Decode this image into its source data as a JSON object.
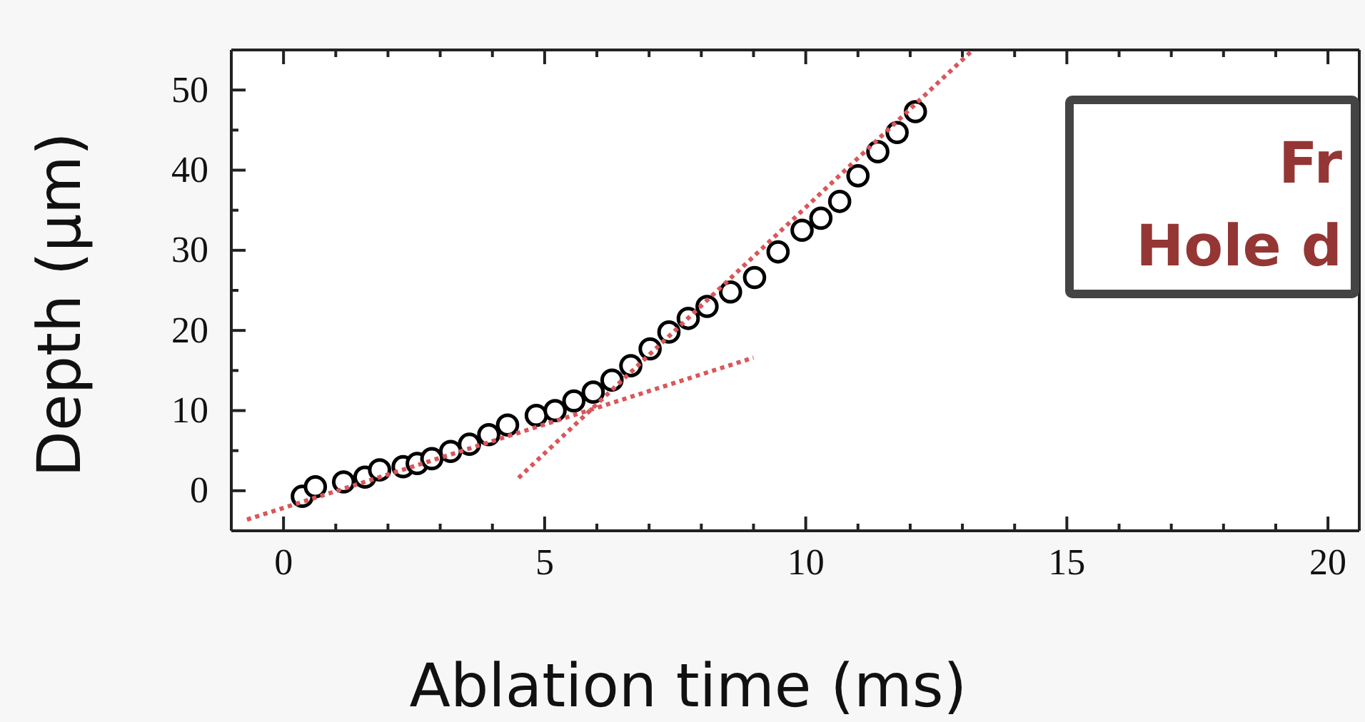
{
  "chart_data": {
    "type": "scatter",
    "xlabel": "Ablation time (ms)",
    "ylabel": "Depth (μm)",
    "xlim": [
      -1,
      20.6
    ],
    "ylim": [
      -5,
      55
    ],
    "xticks": [
      0,
      {
        "value": 1,
        "label": null
      },
      {
        "value": 2,
        "label": null
      },
      {
        "value": 3,
        "label": null
      },
      {
        "value": 4,
        "label": null
      },
      5,
      {
        "value": 6,
        "label": null
      },
      {
        "value": 7,
        "label": null
      },
      {
        "value": 8,
        "label": null
      },
      {
        "value": 9,
        "label": null
      },
      10,
      {
        "value": 11,
        "label": null
      },
      {
        "value": 12,
        "label": null
      },
      {
        "value": 13,
        "label": null
      },
      {
        "value": 14,
        "label": null
      },
      15,
      {
        "value": 16,
        "label": null
      },
      {
        "value": 17,
        "label": null
      },
      {
        "value": 18,
        "label": null
      },
      {
        "value": 19,
        "label": null
      },
      20
    ],
    "yticks": [
      {
        "value": -5,
        "label": null
      },
      0,
      {
        "value": 5,
        "label": null
      },
      10,
      {
        "value": 15,
        "label": null
      },
      20,
      {
        "value": 25,
        "label": null
      },
      30,
      {
        "value": 35,
        "label": null
      },
      40,
      {
        "value": 45,
        "label": null
      },
      50
    ],
    "grid": false,
    "series": [
      {
        "color": "#000000",
        "marker": "circle",
        "x": [
          0.36,
          0.61,
          1.15,
          1.56,
          1.84,
          2.29,
          2.56,
          2.84,
          3.2,
          3.56,
          3.93,
          4.29,
          4.84,
          5.2,
          5.56,
          5.93,
          6.29,
          6.65,
          7.02,
          7.38,
          7.75,
          8.11,
          8.56,
          9.02,
          9.47,
          9.93,
          10.29,
          10.65,
          11.0,
          11.38,
          11.75,
          12.1
        ],
        "values": [
          -0.7,
          0.5,
          1.1,
          1.7,
          2.6,
          3.0,
          3.4,
          4.0,
          4.9,
          5.8,
          7.0,
          8.2,
          9.4,
          10.0,
          11.2,
          12.3,
          13.8,
          15.6,
          17.7,
          19.8,
          21.5,
          23.0,
          24.8,
          26.6,
          29.8,
          32.5,
          34.0,
          36.1,
          39.3,
          42.3,
          44.7,
          47.3
        ]
      },
      {
        "type": "line",
        "color": "#d9575a",
        "line_style": "dotted",
        "marker": "none",
        "x": [
          -0.7,
          9.0
        ],
        "values": [
          -3.6,
          16.6
        ]
      },
      {
        "type": "line",
        "color": "#d9575a",
        "line_style": "dotted",
        "marker": "none",
        "x": [
          4.5,
          13.2
        ],
        "values": [
          1.6,
          55
        ]
      }
    ],
    "annotations": [
      "Fr",
      "Hole d"
    ]
  }
}
